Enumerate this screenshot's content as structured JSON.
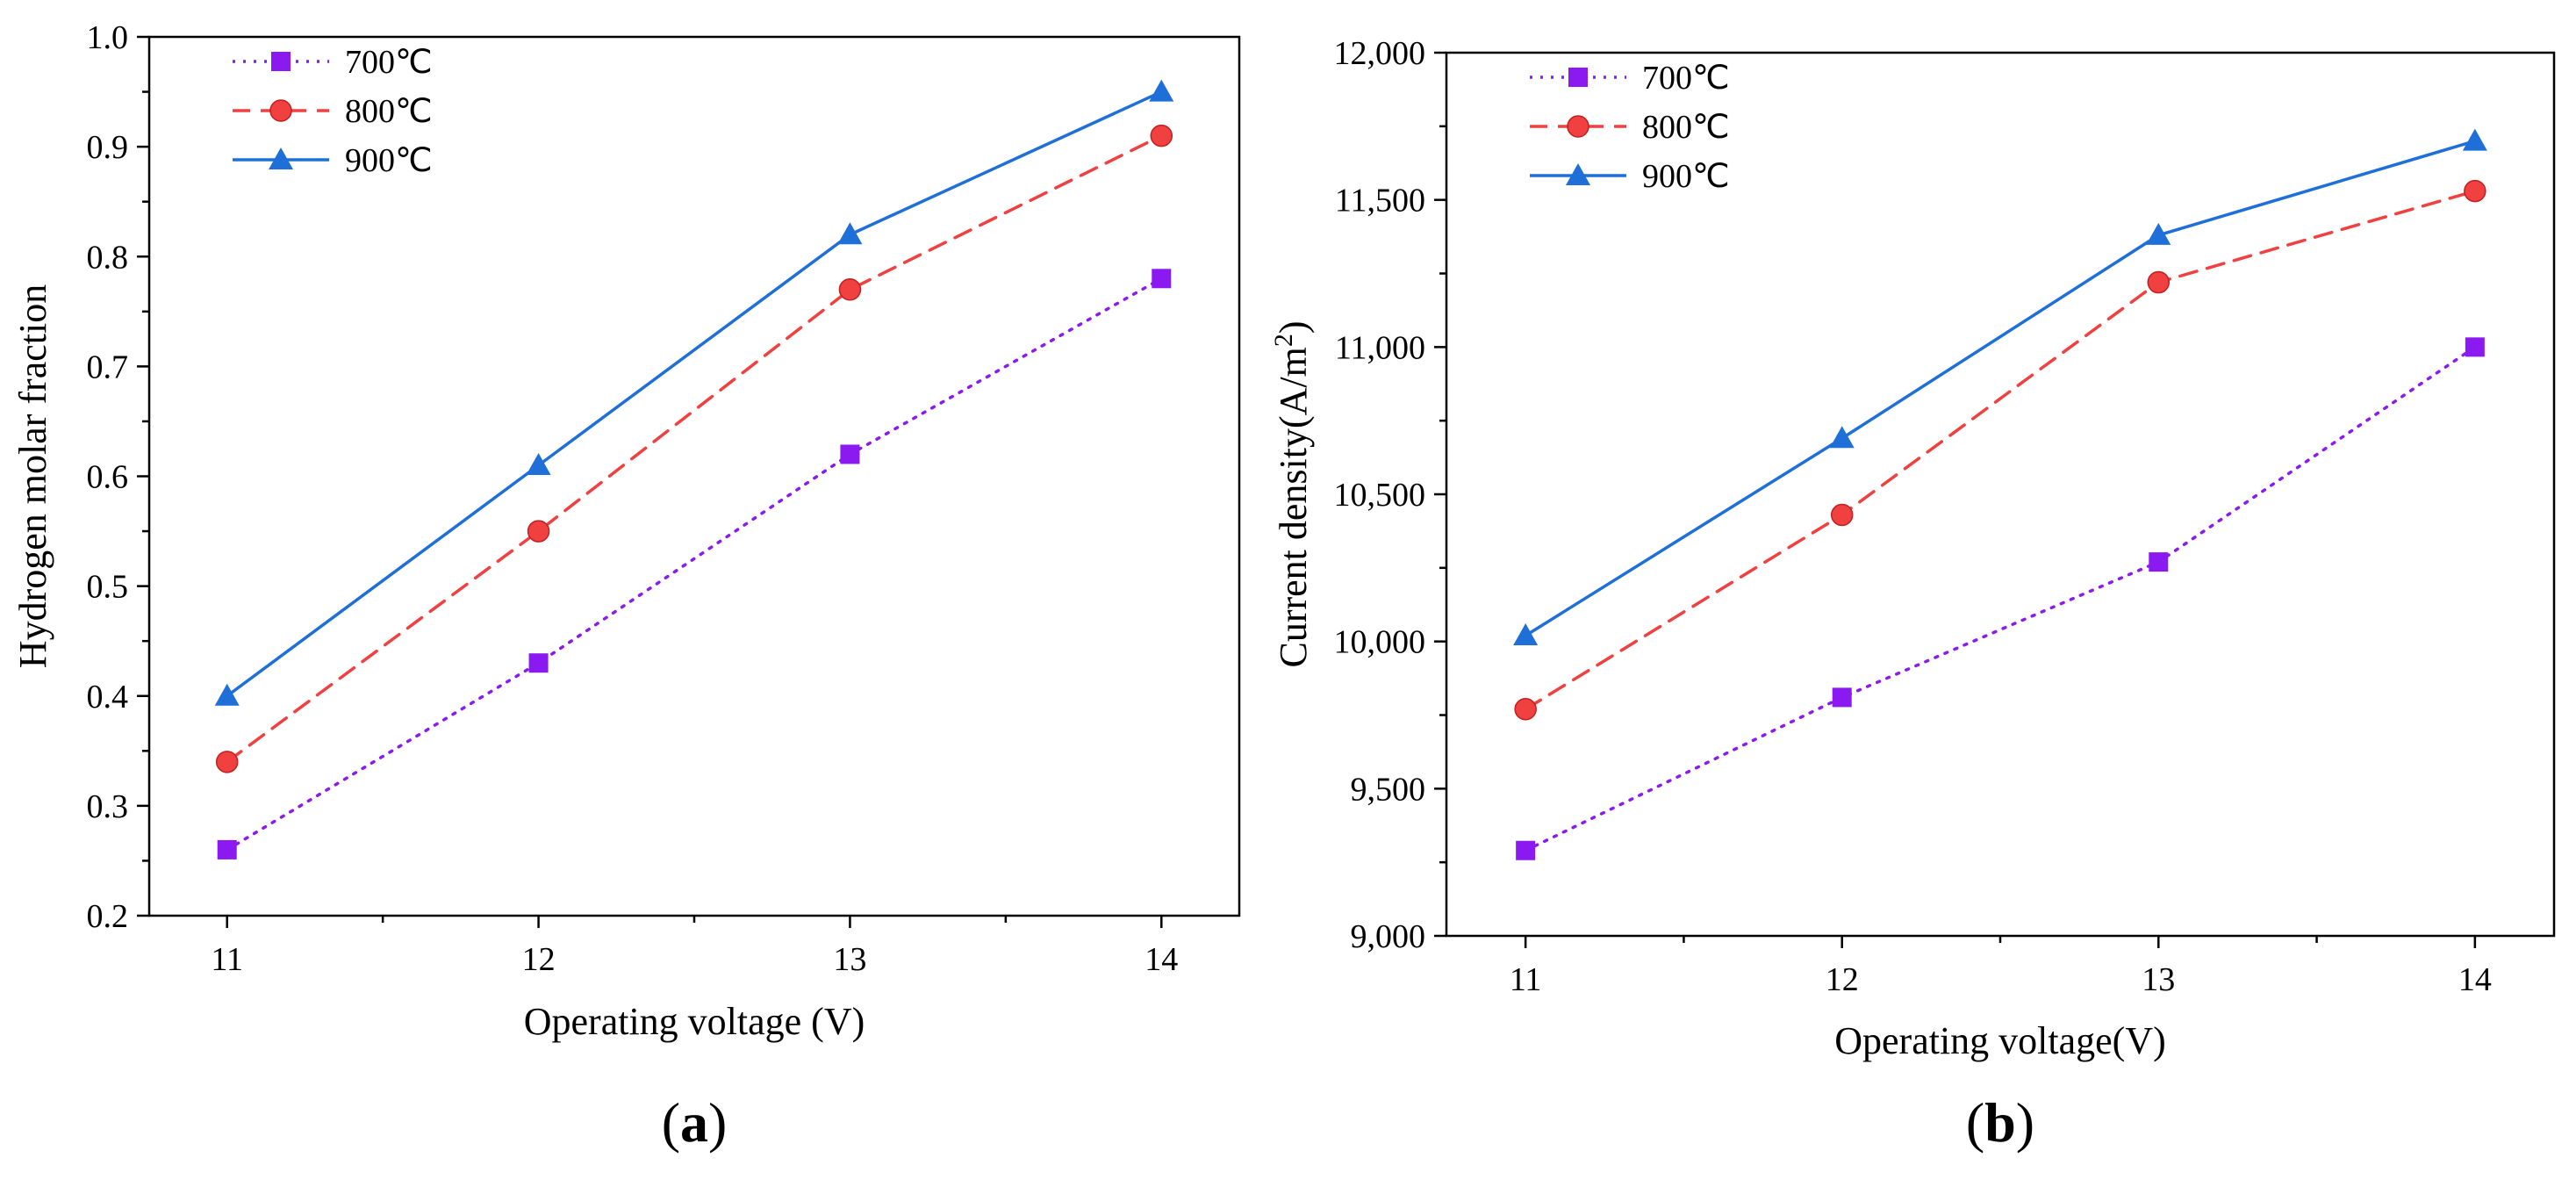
{
  "chart_data": [
    {
      "type": "line",
      "panel_label": "a",
      "x": [
        11,
        12,
        13,
        14
      ],
      "xlabel": "Operating voltage (V)",
      "ylabel": "Hydrogen molar fraction",
      "xlim": [
        10.75,
        14.25
      ],
      "ylim": [
        0.2,
        1.0
      ],
      "xticks": [
        "11",
        "12",
        "13",
        "14"
      ],
      "yticks": [
        "0.2",
        "0.3",
        "0.4",
        "0.5",
        "0.6",
        "0.7",
        "0.8",
        "0.9",
        "1.0"
      ],
      "ytick_values": [
        0.2,
        0.3,
        0.4,
        0.5,
        0.6,
        0.7,
        0.8,
        0.9,
        1.0
      ],
      "legend_position": "top-left",
      "series": [
        {
          "name": "700℃",
          "values": [
            0.26,
            0.43,
            0.62,
            0.78
          ],
          "color": "#8B1AF0",
          "marker": "square",
          "line_style": "dotted"
        },
        {
          "name": "800℃",
          "values": [
            0.34,
            0.55,
            0.77,
            0.91
          ],
          "color": "#F04040",
          "marker": "circle",
          "line_style": "dashed"
        },
        {
          "name": "900℃",
          "values": [
            0.4,
            0.61,
            0.82,
            0.95
          ],
          "color": "#1F6FD9",
          "marker": "triangle",
          "line_style": "solid"
        }
      ]
    },
    {
      "type": "line",
      "panel_label": "b",
      "x": [
        11,
        12,
        13,
        14
      ],
      "xlabel": "Operating voltage(V)",
      "ylabel": "Current density(A/m",
      "ylabel_superscript": "2",
      "ylabel_suffix": ")",
      "xlim": [
        10.75,
        14.25
      ],
      "ylim": [
        9000,
        12000
      ],
      "xticks": [
        "11",
        "12",
        "13",
        "14"
      ],
      "yticks": [
        "9,000",
        "9,500",
        "10,000",
        "10,500",
        "11,000",
        "11,500",
        "12,000"
      ],
      "ytick_values": [
        9000,
        9500,
        10000,
        10500,
        11000,
        11500,
        12000
      ],
      "legend_position": "top-left",
      "series": [
        {
          "name": "700℃",
          "values": [
            9290,
            9810,
            10270,
            11000
          ],
          "color": "#8B1AF0",
          "marker": "square",
          "line_style": "dotted"
        },
        {
          "name": "800℃",
          "values": [
            9770,
            10430,
            11220,
            11530
          ],
          "color": "#F04040",
          "marker": "circle",
          "line_style": "dashed"
        },
        {
          "name": "900℃",
          "values": [
            10020,
            10690,
            11380,
            11700
          ],
          "color": "#1F6FD9",
          "marker": "triangle",
          "line_style": "solid"
        }
      ]
    }
  ]
}
